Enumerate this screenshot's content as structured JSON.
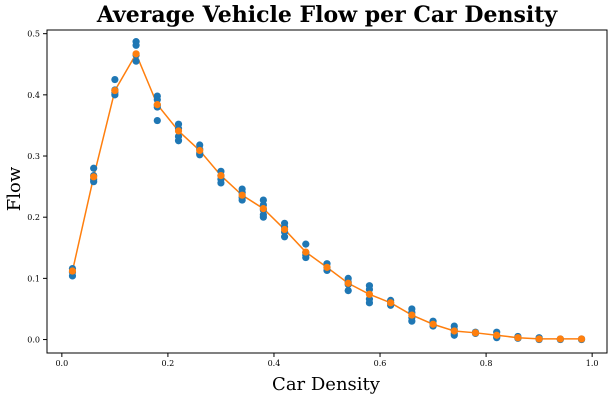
{
  "chart_data": {
    "type": "scatter",
    "title": "Average Vehicle Flow per Car Density",
    "xlabel": "Car Density",
    "ylabel": "Flow",
    "xlim": [
      -0.028,
      1.028
    ],
    "ylim": [
      -0.022,
      0.506
    ],
    "xticks": [
      0.0,
      0.2,
      0.4,
      0.6,
      0.8,
      1.0
    ],
    "xtick_labels": [
      "0.0",
      "0.2",
      "0.4",
      "0.6",
      "0.8",
      "1.0"
    ],
    "yticks": [
      0.0,
      0.1,
      0.2,
      0.3,
      0.4,
      0.5
    ],
    "ytick_labels": [
      "0.0",
      "0.1",
      "0.2",
      "0.3",
      "0.4",
      "0.5"
    ],
    "grid": false,
    "legend": "none",
    "series": [
      {
        "kind": "scatter",
        "color": "#1f77b4",
        "points": [
          [
            0.02,
            0.116
          ],
          [
            0.02,
            0.11
          ],
          [
            0.02,
            0.104
          ],
          [
            0.06,
            0.28
          ],
          [
            0.06,
            0.262
          ],
          [
            0.06,
            0.258
          ],
          [
            0.06,
            0.268
          ],
          [
            0.1,
            0.425
          ],
          [
            0.1,
            0.408
          ],
          [
            0.1,
            0.4
          ],
          [
            0.1,
            0.404
          ],
          [
            0.14,
            0.487
          ],
          [
            0.14,
            0.481
          ],
          [
            0.14,
            0.465
          ],
          [
            0.14,
            0.455
          ],
          [
            0.18,
            0.398
          ],
          [
            0.18,
            0.392
          ],
          [
            0.18,
            0.383
          ],
          [
            0.18,
            0.38
          ],
          [
            0.18,
            0.358
          ],
          [
            0.22,
            0.352
          ],
          [
            0.22,
            0.345
          ],
          [
            0.22,
            0.332
          ],
          [
            0.22,
            0.325
          ],
          [
            0.26,
            0.318
          ],
          [
            0.26,
            0.311
          ],
          [
            0.26,
            0.305
          ],
          [
            0.26,
            0.302
          ],
          [
            0.3,
            0.275
          ],
          [
            0.3,
            0.268
          ],
          [
            0.3,
            0.262
          ],
          [
            0.3,
            0.256
          ],
          [
            0.34,
            0.246
          ],
          [
            0.34,
            0.24
          ],
          [
            0.34,
            0.232
          ],
          [
            0.34,
            0.228
          ],
          [
            0.38,
            0.228
          ],
          [
            0.38,
            0.22
          ],
          [
            0.38,
            0.212
          ],
          [
            0.38,
            0.204
          ],
          [
            0.38,
            0.2
          ],
          [
            0.42,
            0.19
          ],
          [
            0.42,
            0.184
          ],
          [
            0.42,
            0.176
          ],
          [
            0.42,
            0.168
          ],
          [
            0.46,
            0.156
          ],
          [
            0.46,
            0.142
          ],
          [
            0.46,
            0.138
          ],
          [
            0.46,
            0.134
          ],
          [
            0.5,
            0.124
          ],
          [
            0.5,
            0.118
          ],
          [
            0.5,
            0.113
          ],
          [
            0.54,
            0.1
          ],
          [
            0.54,
            0.094
          ],
          [
            0.54,
            0.09
          ],
          [
            0.54,
            0.08
          ],
          [
            0.58,
            0.088
          ],
          [
            0.58,
            0.082
          ],
          [
            0.58,
            0.066
          ],
          [
            0.58,
            0.06
          ],
          [
            0.62,
            0.064
          ],
          [
            0.62,
            0.06
          ],
          [
            0.62,
            0.056
          ],
          [
            0.66,
            0.05
          ],
          [
            0.66,
            0.044
          ],
          [
            0.66,
            0.036
          ],
          [
            0.66,
            0.03
          ],
          [
            0.7,
            0.03
          ],
          [
            0.7,
            0.025
          ],
          [
            0.7,
            0.022
          ],
          [
            0.74,
            0.022
          ],
          [
            0.74,
            0.016
          ],
          [
            0.74,
            0.01
          ],
          [
            0.74,
            0.007
          ],
          [
            0.78,
            0.012
          ],
          [
            0.78,
            0.01
          ],
          [
            0.82,
            0.012
          ],
          [
            0.82,
            0.006
          ],
          [
            0.82,
            0.003
          ],
          [
            0.86,
            0.005
          ],
          [
            0.86,
            0.003
          ],
          [
            0.86,
            0.002
          ],
          [
            0.9,
            0.003
          ],
          [
            0.9,
            0.001
          ],
          [
            0.9,
            0.0
          ],
          [
            0.94,
            0.001
          ],
          [
            0.94,
            0.0
          ],
          [
            0.98,
            0.001
          ],
          [
            0.98,
            0.0
          ]
        ]
      },
      {
        "kind": "line_with_markers",
        "color": "#ff7f0e",
        "x": [
          0.02,
          0.06,
          0.1,
          0.14,
          0.18,
          0.22,
          0.26,
          0.3,
          0.34,
          0.38,
          0.42,
          0.46,
          0.5,
          0.54,
          0.58,
          0.62,
          0.66,
          0.7,
          0.74,
          0.78,
          0.82,
          0.86,
          0.9,
          0.94,
          0.98
        ],
        "y": [
          0.112,
          0.266,
          0.407,
          0.467,
          0.384,
          0.341,
          0.309,
          0.268,
          0.236,
          0.214,
          0.18,
          0.143,
          0.118,
          0.092,
          0.074,
          0.06,
          0.04,
          0.025,
          0.014,
          0.011,
          0.007,
          0.003,
          0.001,
          0.001,
          0.001
        ]
      }
    ]
  }
}
